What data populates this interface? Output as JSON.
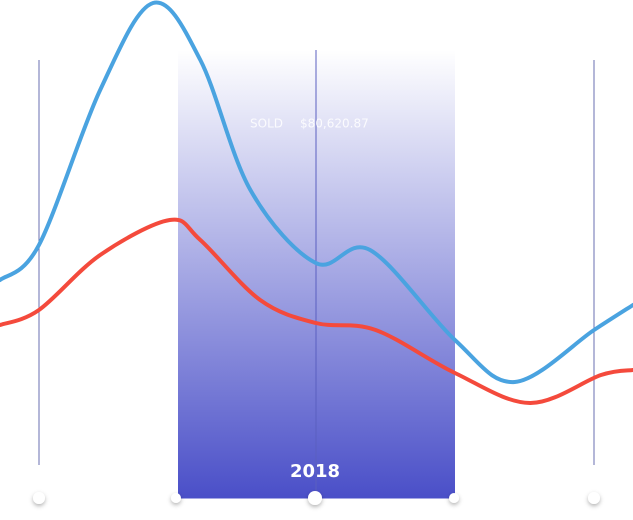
{
  "chart_data": {
    "type": "line",
    "label": "SOLD",
    "amount": "$80,620.87",
    "highlight": "2018",
    "xlim": [
      -0.28,
      4.27
    ],
    "ylim": [
      0,
      100
    ],
    "series": [
      {
        "color": "#4aa3e0",
        "x": [
          -0.28,
          0,
          0.44,
          0.82,
          1.16,
          1.52,
          1.99,
          2.38,
          2.99,
          3.42,
          3.99,
          4.27
        ],
        "values": [
          44,
          51,
          82,
          99.4,
          88,
          62,
          47.4,
          50,
          32,
          23.6,
          34,
          39
        ]
      },
      {
        "color": "#f44a3c",
        "x": [
          -0.28,
          0,
          0.44,
          0.94,
          1.16,
          1.59,
          1.99,
          2.42,
          2.99,
          3.53,
          4.04,
          4.27
        ],
        "values": [
          35,
          38,
          49,
          56,
          52,
          40,
          35.4,
          34,
          25.4,
          19.4,
          25,
          26
        ]
      }
    ]
  }
}
